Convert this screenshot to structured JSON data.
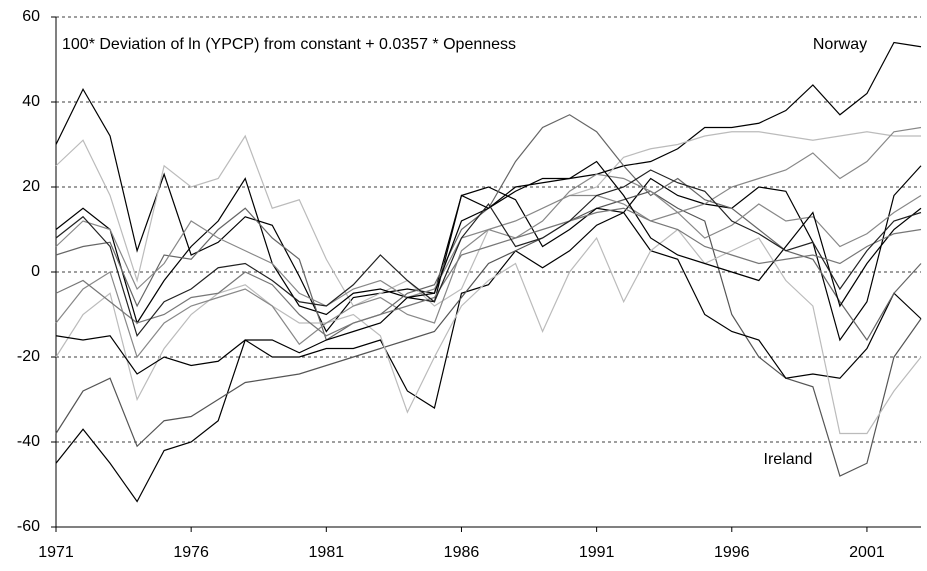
{
  "chart_data": {
    "type": "line",
    "title": "100* Deviation of ln (YPCP) from constant + 0.0357 * Openness",
    "x": [
      1971,
      1972,
      1973,
      1974,
      1975,
      1976,
      1977,
      1978,
      1979,
      1980,
      1981,
      1982,
      1983,
      1984,
      1985,
      1986,
      1987,
      1988,
      1989,
      1990,
      1991,
      1992,
      1993,
      1994,
      1995,
      1996,
      1997,
      1998,
      1999,
      2000,
      2001,
      2002,
      2003
    ],
    "xlim": [
      1971,
      2003
    ],
    "xticks": [
      1971,
      1976,
      1981,
      1986,
      1991,
      1996,
      2001
    ],
    "ylim": [
      -60,
      60
    ],
    "yticks": [
      -60,
      -40,
      -20,
      0,
      20,
      40,
      60
    ],
    "grid": true,
    "series": [
      {
        "name": "Norway",
        "color": "#000000",
        "values": [
          30,
          43,
          32,
          5,
          23,
          4,
          7,
          13,
          11,
          -1,
          -14,
          -6,
          -5,
          -4,
          -5,
          18,
          15,
          20,
          21,
          22,
          23,
          25,
          26,
          29,
          34,
          34,
          35,
          38,
          44,
          37,
          42,
          54,
          53
        ]
      },
      {
        "name": "Ireland",
        "color": "#000000",
        "values": [
          -45,
          -37,
          -45,
          -54,
          -42,
          -40,
          -35,
          -16,
          -20,
          -20,
          -18,
          -18,
          -16,
          -28,
          -32,
          -5,
          -3,
          5,
          1,
          5,
          11,
          14,
          22,
          18,
          16,
          15,
          20,
          19,
          7,
          -16,
          -7,
          18,
          25
        ]
      },
      {
        "color": "#555555",
        "values": [
          -38,
          -28,
          -25,
          -41,
          -35,
          -34,
          -30,
          -26,
          -25,
          -24,
          -22,
          -20,
          -18,
          -16,
          -14,
          -6,
          2,
          5,
          8,
          12,
          15,
          17,
          19,
          15,
          12,
          -10,
          -20,
          -25,
          -27,
          -48,
          -45,
          -20,
          -11
        ]
      },
      {
        "color": "#bbbbbb",
        "values": [
          25,
          31,
          18,
          -2,
          25,
          20,
          22,
          32,
          15,
          17,
          3,
          -8,
          -5,
          -2,
          -8,
          -4,
          10,
          12,
          15,
          18,
          20,
          27,
          29,
          30,
          32,
          33,
          33,
          32,
          31,
          32,
          33,
          32,
          32
        ]
      },
      {
        "color": "#000000",
        "values": [
          10,
          15,
          10,
          -12,
          -2,
          6,
          12,
          22,
          2,
          -8,
          -10,
          -5,
          -4,
          -6,
          -7,
          18,
          20,
          17,
          6,
          10,
          15,
          14,
          5,
          3,
          -10,
          -14,
          -16,
          -25,
          -24,
          -25,
          -18,
          -5,
          -11
        ]
      },
      {
        "color": "#666666",
        "values": [
          4,
          6,
          7,
          -8,
          4,
          3,
          10,
          15,
          8,
          3,
          -16,
          -12,
          -10,
          -5,
          -3,
          10,
          15,
          26,
          34,
          37,
          33,
          25,
          18,
          22,
          17,
          15,
          10,
          5,
          3,
          -7,
          -16,
          -5,
          2
        ]
      },
      {
        "color": "#888888",
        "values": [
          6,
          12,
          10,
          -4,
          2,
          12,
          8,
          5,
          2,
          -5,
          -8,
          -4,
          -2,
          -6,
          -4,
          8,
          10,
          8,
          12,
          19,
          23,
          22,
          19,
          14,
          8,
          11,
          16,
          12,
          13,
          6,
          9,
          14,
          18
        ]
      },
      {
        "color": "#bbbbbb",
        "values": [
          -20,
          -10,
          -5,
          -30,
          -18,
          -10,
          -5,
          -3,
          -8,
          -12,
          -12,
          -10,
          -15,
          -33,
          -20,
          -8,
          -2,
          2,
          -14,
          0,
          8,
          -7,
          5,
          10,
          2,
          5,
          8,
          -2,
          -8,
          -38,
          -38,
          -28,
          -20
        ]
      },
      {
        "color": "#888888",
        "values": [
          -12,
          -4,
          0,
          -20,
          -12,
          -8,
          -6,
          -4,
          -8,
          -17,
          -12,
          -8,
          -6,
          -10,
          -12,
          5,
          10,
          12,
          15,
          18,
          18,
          16,
          12,
          14,
          16,
          20,
          22,
          24,
          28,
          22,
          26,
          33,
          34
        ]
      },
      {
        "color": "#000000",
        "values": [
          -15,
          -16,
          -15,
          -24,
          -20,
          -22,
          -21,
          -16,
          -16,
          -19,
          -16,
          -14,
          -12,
          -6,
          -5,
          12,
          15,
          19,
          22,
          22,
          26,
          18,
          8,
          4,
          2,
          0,
          -2,
          6,
          14,
          -8,
          2,
          10,
          15
        ]
      },
      {
        "color": "#777777",
        "values": [
          -5,
          -2,
          -7,
          -12,
          -10,
          -6,
          -5,
          0,
          -3,
          -10,
          -15,
          -12,
          -10,
          -8,
          -6,
          4,
          6,
          8,
          10,
          12,
          14,
          15,
          12,
          10,
          6,
          4,
          2,
          3,
          4,
          2,
          6,
          9,
          10
        ]
      },
      {
        "color": "#222222",
        "values": [
          8,
          13,
          6,
          -15,
          -7,
          -4,
          1,
          2,
          -2,
          -7,
          -8,
          -3,
          4,
          -2,
          -7,
          8,
          16,
          6,
          8,
          12,
          18,
          20,
          24,
          21,
          19,
          12,
          9,
          5,
          7,
          -4,
          5,
          12,
          14
        ]
      }
    ]
  }
}
